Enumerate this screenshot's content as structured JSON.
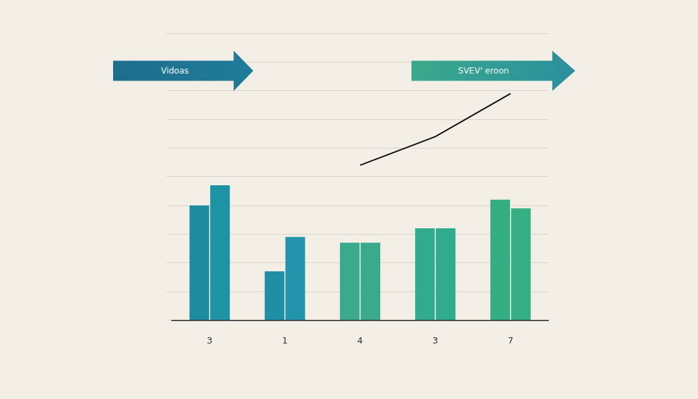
{
  "chart_data": {
    "type": "bar",
    "annotations": [
      "Vidoas",
      "SVEV' eroon"
    ],
    "categories": [
      "3",
      "1",
      "4",
      "3",
      "7"
    ],
    "series": [
      {
        "values": [
          40,
          17,
          27,
          32,
          42
        ],
        "colors": [
          "#1d8c9e",
          "#1f8fa6",
          "#3aa98c",
          "#31ab8d",
          "#32ae82"
        ]
      },
      {
        "values": [
          47,
          29,
          27,
          32,
          39
        ],
        "colors": [
          "#1f93a6",
          "#2294ab",
          "#3aa98c",
          "#31ab8d",
          "#35b085"
        ]
      },
      {
        "type": "line",
        "color": "#111111",
        "values": [
          null,
          null,
          54,
          64,
          79
        ]
      }
    ],
    "ylim": [
      0,
      100
    ],
    "yticks": [
      0,
      10,
      20,
      30,
      40,
      50,
      60,
      70,
      80,
      90,
      100
    ],
    "grid": true,
    "tick_labels": "x"
  }
}
